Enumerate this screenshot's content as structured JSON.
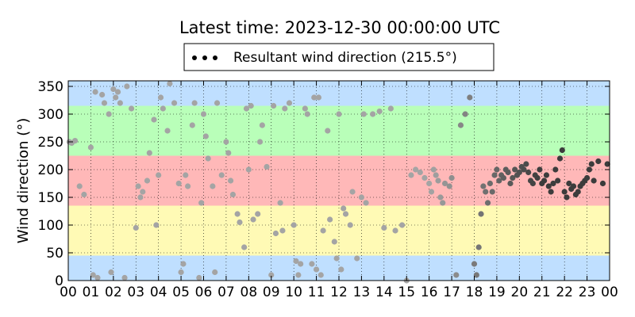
{
  "chart_data": {
    "type": "scatter",
    "title": "Latest time: 2023-12-30 00:00:00 UTC",
    "ylabel": "Wind direction (°)",
    "xlabel": "",
    "xlim": [
      0,
      24
    ],
    "ylim": [
      0,
      360
    ],
    "x_tick_labels": [
      "00",
      "01",
      "02",
      "03",
      "04",
      "05",
      "06",
      "07",
      "08",
      "09",
      "10",
      "11",
      "12",
      "13",
      "14",
      "15",
      "16",
      "17",
      "18",
      "19",
      "20",
      "21",
      "22",
      "23",
      "00"
    ],
    "y_ticks": [
      0,
      50,
      100,
      150,
      200,
      250,
      300,
      350
    ],
    "grid": true,
    "legend": {
      "placement": "top-center",
      "entries": [
        "Resultant wind direction (215.5°)"
      ]
    },
    "bands": [
      {
        "from": 0,
        "to": 45,
        "color": "#bfdfff"
      },
      {
        "from": 45,
        "to": 135,
        "color": "#fffab5"
      },
      {
        "from": 135,
        "to": 225,
        "color": "#ffb8b8"
      },
      {
        "from": 225,
        "to": 315,
        "color": "#b9ffb9"
      },
      {
        "from": 315,
        "to": 360,
        "color": "#bfdfff"
      }
    ],
    "series": [
      {
        "marker_color_old": "#a4a4a4",
        "marker_color_new": "#3c3c3c",
        "x": [
          0.05,
          0.15,
          0.3,
          0.5,
          0.7,
          1.0,
          1.1,
          1.2,
          1.3,
          1.5,
          1.6,
          1.8,
          1.9,
          2.0,
          2.1,
          2.2,
          2.3,
          2.5,
          2.6,
          2.8,
          3.0,
          3.1,
          3.2,
          3.3,
          3.5,
          3.6,
          3.8,
          3.9,
          4.0,
          4.1,
          4.2,
          4.4,
          4.5,
          4.7,
          4.9,
          5.0,
          5.1,
          5.2,
          5.3,
          5.5,
          5.6,
          5.8,
          5.9,
          6.0,
          6.1,
          6.2,
          6.4,
          6.5,
          6.6,
          6.8,
          7.0,
          7.1,
          7.2,
          7.3,
          7.5,
          7.6,
          7.8,
          7.9,
          8.0,
          8.1,
          8.2,
          8.4,
          8.5,
          8.6,
          8.8,
          9.0,
          9.1,
          9.2,
          9.4,
          9.5,
          9.6,
          9.8,
          10.0,
          10.1,
          10.2,
          10.3,
          10.5,
          10.6,
          10.8,
          10.9,
          11.0,
          11.1,
          11.2,
          11.3,
          11.5,
          11.6,
          11.8,
          11.9,
          12.0,
          12.1,
          12.2,
          12.3,
          12.5,
          12.6,
          12.8,
          13.0,
          13.1,
          13.2,
          13.5,
          13.8,
          14.0,
          14.3,
          14.5,
          14.8,
          15.0,
          15.2,
          15.4,
          15.6,
          15.8,
          16.0,
          16.1,
          16.2,
          16.3,
          16.4,
          16.5,
          16.6,
          16.7,
          16.9,
          17.0,
          17.2,
          17.4,
          17.6,
          17.8,
          18.0,
          18.1,
          18.2,
          18.3,
          18.4,
          18.5,
          18.6,
          18.7,
          18.8,
          18.9,
          19.0,
          19.1,
          19.2,
          19.3,
          19.4,
          19.5,
          19.6,
          19.7,
          19.8,
          19.9,
          20.0,
          20.1,
          20.2,
          20.3,
          20.4,
          20.5,
          20.6,
          20.7,
          20.8,
          20.9,
          21.0,
          21.1,
          21.2,
          21.3,
          21.4,
          21.5,
          21.6,
          21.7,
          21.8,
          21.9,
          22.0,
          22.1,
          22.2,
          22.3,
          22.4,
          22.5,
          22.6,
          22.7,
          22.8,
          22.9,
          23.0,
          23.1,
          23.2,
          23.3,
          23.5,
          23.7,
          23.9
        ],
        "y": [
          250,
          248,
          252,
          170,
          155,
          240,
          10,
          340,
          5,
          335,
          320,
          300,
          15,
          345,
          330,
          340,
          320,
          5,
          350,
          310,
          95,
          170,
          150,
          160,
          180,
          230,
          290,
          100,
          190,
          330,
          310,
          270,
          355,
          320,
          175,
          15,
          30,
          190,
          170,
          280,
          320,
          5,
          140,
          300,
          260,
          220,
          170,
          15,
          320,
          190,
          250,
          230,
          180,
          155,
          120,
          105,
          60,
          310,
          200,
          315,
          110,
          120,
          250,
          280,
          205,
          10,
          315,
          85,
          140,
          90,
          310,
          320,
          100,
          35,
          10,
          30,
          310,
          300,
          30,
          330,
          20,
          330,
          10,
          90,
          270,
          110,
          70,
          40,
          300,
          20,
          130,
          120,
          100,
          160,
          40,
          150,
          300,
          140,
          300,
          305,
          95,
          310,
          90,
          100,
          0,
          190,
          200,
          195,
          185,
          175,
          160,
          200,
          190,
          180,
          150,
          140,
          175,
          170,
          185,
          10,
          280,
          300,
          330,
          30,
          10,
          60,
          120,
          170,
          160,
          140,
          175,
          160,
          190,
          200,
          180,
          190,
          185,
          200,
          195,
          175,
          185,
          200,
          190,
          195,
          205,
          200,
          210,
          195,
          180,
          175,
          190,
          185,
          200,
          175,
          180,
          190,
          170,
          160,
          175,
          200,
          180,
          220,
          235,
          160,
          150,
          175,
          165,
          170,
          155,
          160,
          170,
          175,
          180,
          185,
          200,
          210,
          180,
          215,
          175,
          210
        ]
      }
    ]
  }
}
